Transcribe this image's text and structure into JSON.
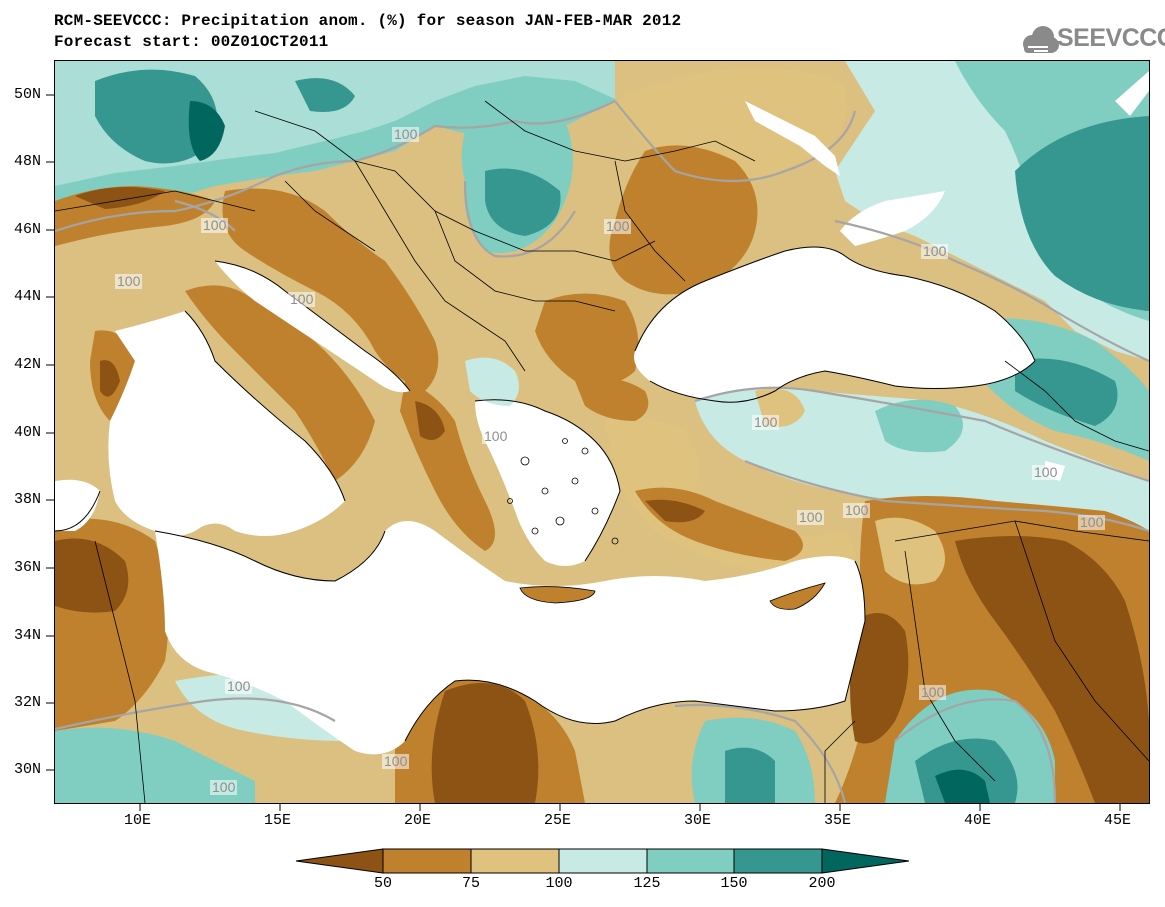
{
  "header": {
    "title_line1": "RCM-SEEVCCC: Precipitation anom. (%) for season JAN-FEB-MAR 2012",
    "title_line2": "Forecast start: 00Z01OCT2011",
    "logo_text": "SEEVCCC"
  },
  "axes": {
    "latitude_labels": [
      "50N",
      "48N",
      "46N",
      "44N",
      "42N",
      "40N",
      "38N",
      "36N",
      "34N",
      "32N",
      "30N"
    ],
    "longitude_labels": [
      "10E",
      "15E",
      "20E",
      "25E",
      "30E",
      "35E",
      "40E",
      "45E"
    ]
  },
  "contour_labels": [
    "100",
    "100",
    "100",
    "100",
    "100",
    "100",
    "100",
    "100",
    "100",
    "100",
    "100",
    "100",
    "100",
    "100",
    "100",
    "100"
  ],
  "colorbar": {
    "ticks": [
      "50",
      "75",
      "100",
      "125",
      "150",
      "200"
    ],
    "colors": {
      "below_50": "#8c5314",
      "50_75": "#bf812d",
      "75_100": "#dfc27d",
      "100_125": "#c7eae5",
      "125_150": "#80cdc1",
      "150_200": "#35978f",
      "above_200": "#01665e"
    }
  },
  "colors": {
    "sea": "#ffffff",
    "contour_100": "#a5a5a5",
    "border": "#000000"
  }
}
